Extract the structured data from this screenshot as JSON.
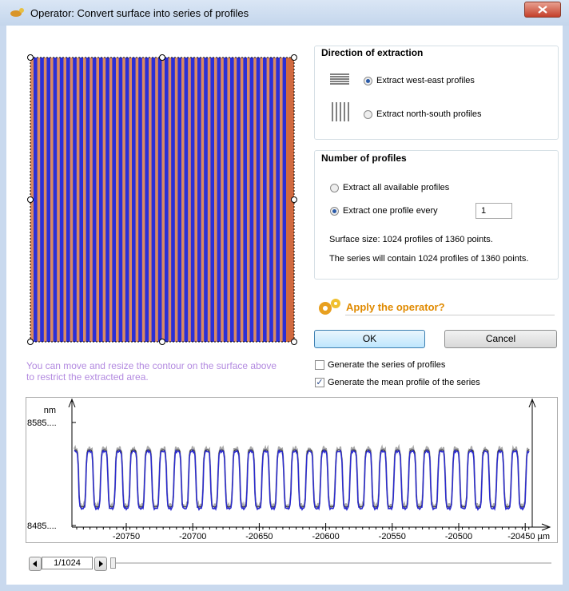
{
  "window": {
    "title": "Operator: Convert surface into series of profiles"
  },
  "surface_hint": "You can move and resize the contour on the surface above to restrict the extracted area.",
  "direction": {
    "title": "Direction of extraction",
    "options": [
      "Extract west-east profiles",
      "Extract north-south profiles"
    ],
    "selected": 0
  },
  "profiles": {
    "title": "Number of profiles",
    "options": [
      "Extract all available profiles",
      "Extract one profile every"
    ],
    "selected": 1,
    "every_value": "1",
    "surface_size": "Surface size: 1024 profiles of 1360 points.",
    "series_info": "The series will contain 1024 profiles of 1360 points."
  },
  "apply": {
    "title": "Apply the operator?",
    "ok": "OK",
    "cancel": "Cancel"
  },
  "generate": {
    "options": [
      {
        "label": "Generate the series of profiles",
        "checked": false
      },
      {
        "label": "Generate the mean profile of the series",
        "checked": true
      }
    ]
  },
  "plot": {
    "y_unit": "nm",
    "y_labels": [
      "8585....",
      "8485...."
    ],
    "x_labels": [
      "-20750",
      "-20700",
      "-20650",
      "-20600",
      "-20550",
      "-20500",
      "-20450 µm"
    ]
  },
  "navigator": {
    "position": "1/1024"
  }
}
